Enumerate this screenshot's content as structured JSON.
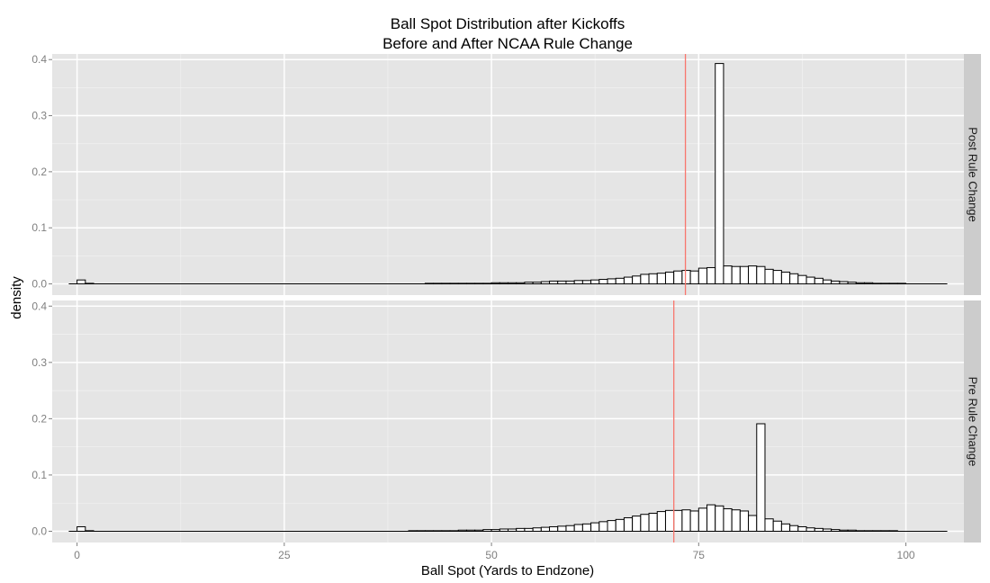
{
  "chart_data": {
    "type": "bar",
    "title": [
      "Ball Spot Distribution after Kickoffs",
      "Before and After NCAA Rule Change"
    ],
    "xlabel": "Ball Spot (Yards to Endzone)",
    "ylabel": "density",
    "xlim": [
      -3,
      107
    ],
    "ylim": [
      -0.02,
      0.41
    ],
    "x_ticks": [
      0,
      25,
      50,
      75,
      100
    ],
    "y_ticks": [
      0.0,
      0.1,
      0.2,
      0.3,
      0.4
    ],
    "y_tick_labels": [
      "0.0",
      "0.1",
      "0.2",
      "0.3",
      "0.4"
    ],
    "bin_width": 1,
    "bin_start": -1,
    "grid": true,
    "background": "#e5e5e5",
    "bar_fill": "#ffffff",
    "bar_stroke": "#000000",
    "vline_color": "#f8766d",
    "strip_color": "#cccccc",
    "panels": [
      {
        "strip": "Post Rule Change",
        "mean_line": 73.4,
        "densities": [
          0,
          0.007,
          0.001,
          0,
          0,
          0,
          0,
          0,
          0,
          0,
          0,
          0,
          0,
          0,
          0,
          0,
          0,
          0,
          0,
          0,
          0,
          0,
          0,
          0,
          0,
          0,
          0,
          0,
          0,
          0,
          0,
          0,
          0,
          0,
          0,
          0,
          0,
          0,
          0,
          0,
          0,
          0,
          0,
          0.001,
          0.001,
          0.001,
          0.001,
          0.001,
          0.001,
          0.001,
          0.001,
          0.002,
          0.002,
          0.002,
          0.002,
          0.003,
          0.003,
          0.004,
          0.005,
          0.005,
          0.005,
          0.006,
          0.006,
          0.007,
          0.008,
          0.009,
          0.01,
          0.012,
          0.014,
          0.017,
          0.018,
          0.019,
          0.021,
          0.023,
          0.024,
          0.023,
          0.028,
          0.029,
          0.393,
          0.032,
          0.031,
          0.031,
          0.032,
          0.031,
          0.026,
          0.024,
          0.021,
          0.018,
          0.015,
          0.012,
          0.01,
          0.007,
          0.005,
          0.004,
          0.003,
          0.002,
          0.002,
          0.001,
          0.001,
          0.001,
          0.001,
          0,
          0,
          0,
          0,
          0
        ]
      },
      {
        "strip": "Pre Rule Change",
        "mean_line": 72.0,
        "densities": [
          0,
          0.008,
          0.001,
          0,
          0,
          0,
          0,
          0,
          0,
          0,
          0,
          0,
          0,
          0,
          0,
          0,
          0,
          0,
          0,
          0,
          0,
          0,
          0,
          0,
          0,
          0,
          0,
          0,
          0,
          0,
          0,
          0,
          0,
          0,
          0,
          0,
          0,
          0,
          0,
          0,
          0,
          0.001,
          0.001,
          0.001,
          0.001,
          0.001,
          0.001,
          0.002,
          0.002,
          0.002,
          0.003,
          0.003,
          0.004,
          0.004,
          0.005,
          0.005,
          0.006,
          0.007,
          0.008,
          0.009,
          0.01,
          0.012,
          0.013,
          0.015,
          0.017,
          0.019,
          0.021,
          0.024,
          0.027,
          0.03,
          0.032,
          0.035,
          0.037,
          0.037,
          0.038,
          0.036,
          0.041,
          0.047,
          0.045,
          0.04,
          0.038,
          0.036,
          0.028,
          0.191,
          0.022,
          0.018,
          0.013,
          0.01,
          0.008,
          0.006,
          0.005,
          0.004,
          0.003,
          0.002,
          0.002,
          0.001,
          0.001,
          0.001,
          0.001,
          0.001,
          0,
          0,
          0,
          0,
          0,
          0
        ]
      }
    ]
  }
}
